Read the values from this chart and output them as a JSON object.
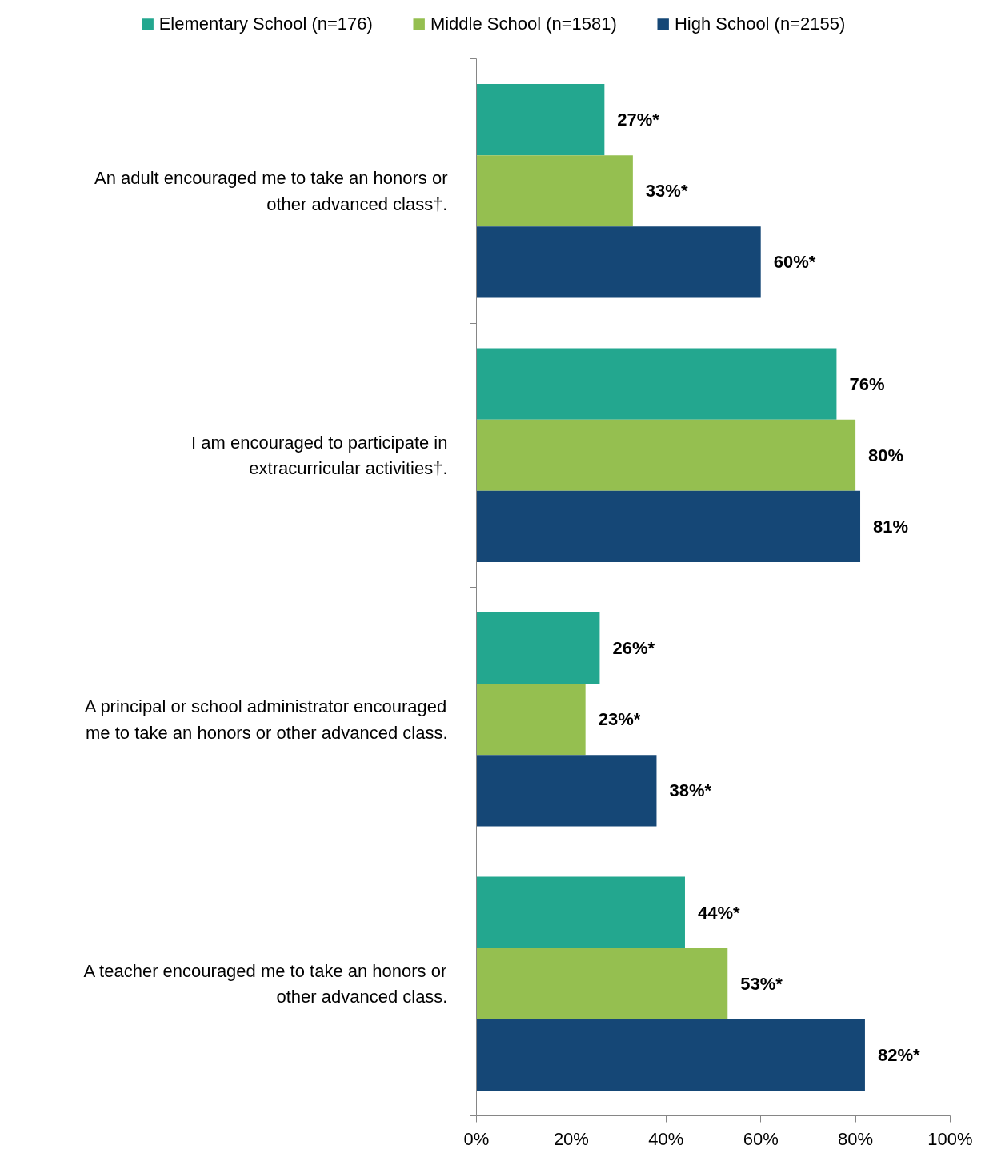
{
  "chart_data": {
    "type": "bar",
    "orientation": "horizontal",
    "categories": [
      "An adult encouraged me to take an honors or other advanced class†.",
      "I am encouraged to participate in extracurricular activities†.",
      "A principal or school administrator encouraged me to take an honors or other advanced class.",
      "A teacher encouraged me to take an honors or other advanced class."
    ],
    "series": [
      {
        "name": "Elementary School (n=176)",
        "color": "#23a78f",
        "values": [
          27,
          76,
          26,
          44
        ],
        "value_labels": [
          "27%*",
          "76%",
          "26%*",
          "44%*"
        ]
      },
      {
        "name": "Middle School (n=1581)",
        "color": "#95bf50",
        "values": [
          33,
          80,
          23,
          53
        ],
        "value_labels": [
          "33%*",
          "80%",
          "23%*",
          "53%*"
        ]
      },
      {
        "name": "High School (n=2155)",
        "color": "#154776",
        "values": [
          60,
          81,
          38,
          82
        ],
        "value_labels": [
          "60%*",
          "81%",
          "38%*",
          "82%*"
        ]
      }
    ],
    "xlim": [
      0,
      100
    ],
    "xticks": [
      {
        "value": 0,
        "label": "0%"
      },
      {
        "value": 20,
        "label": "20%"
      },
      {
        "value": 40,
        "label": "40%"
      },
      {
        "value": 60,
        "label": "60%"
      },
      {
        "value": 80,
        "label": "80%"
      },
      {
        "value": 100,
        "label": "100%"
      }
    ],
    "grid": false,
    "legend": "top"
  }
}
